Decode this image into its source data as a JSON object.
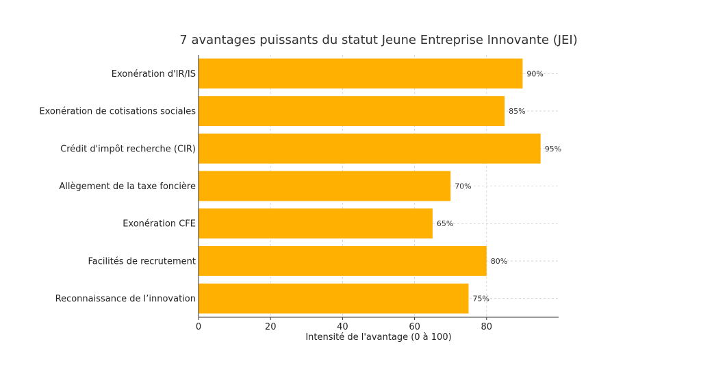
{
  "chart_data": {
    "type": "bar",
    "orientation": "horizontal",
    "title": "7 avantages puissants du statut Jeune Entreprise Innovante (JEI)",
    "xlabel": "Intensité de l'avantage (0 à 100)",
    "ylabel": "",
    "categories": [
      "Exonération d'IR/IS",
      "Exonération de cotisations sociales",
      "Crédit d'impôt recherche (CIR)",
      "Allègement de la taxe foncière",
      "Exonération CFE",
      "Facilités de recrutement",
      "Reconnaissance de l’innovation"
    ],
    "values": [
      90,
      85,
      95,
      70,
      65,
      80,
      75
    ],
    "value_labels": [
      "90%",
      "85%",
      "95%",
      "70%",
      "65%",
      "80%",
      "75%"
    ],
    "xlim": [
      0,
      100
    ],
    "xticks": [
      0,
      20,
      40,
      60,
      80
    ],
    "grid": true,
    "bar_color": "#FFB000",
    "grid_color": "#cfcfcf"
  }
}
